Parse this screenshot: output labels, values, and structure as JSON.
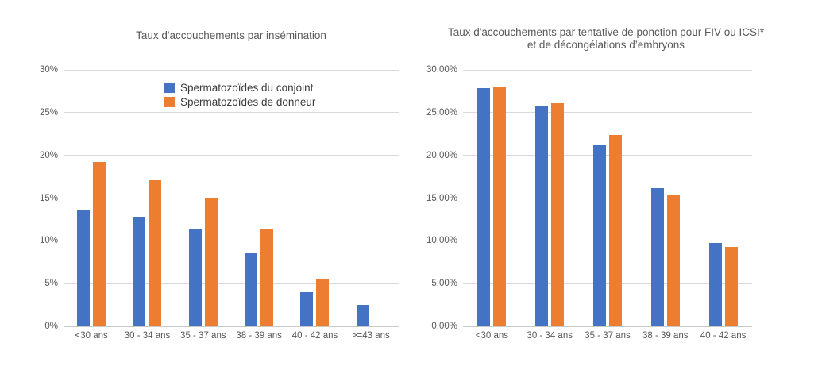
{
  "styles": {
    "background": "#ffffff",
    "bar_blue": "#4472C4",
    "bar_orange": "#ED7D31",
    "grid_color": "#d9d9d9",
    "axis_text_color": "#595959",
    "title_color": "#595959"
  },
  "chart_data": [
    {
      "type": "bar",
      "title": "Taux d'accouchements par insémination",
      "categories": [
        "<30 ans",
        "30 - 34 ans",
        "35 - 37 ans",
        "38 - 39 ans",
        "40 - 42 ans",
        ">=43 ans"
      ],
      "series": [
        {
          "name": "Spermatozoïdes du conjoint",
          "color": "#4472C4",
          "values": [
            13.6,
            12.8,
            11.4,
            8.5,
            4.0,
            2.5
          ]
        },
        {
          "name": "Spermatozoïdes de donneur",
          "color": "#ED7D31",
          "values": [
            19.2,
            17.1,
            15.0,
            11.3,
            5.6,
            null
          ]
        }
      ],
      "ylim": [
        0,
        30
      ],
      "ytick_step": 5,
      "ytick_labels_bottom_to_top": [
        "0%",
        "5%",
        "10%",
        "15%",
        "20%",
        "25%",
        "30%"
      ],
      "grid": true,
      "legend": {
        "visible": true,
        "position": "inside-top"
      }
    },
    {
      "type": "bar",
      "title": "Taux d'accouchements par tentative de ponction pour FIV ou ICSI*\net de décongélations d’embryons",
      "categories": [
        "<30 ans",
        "30 - 34 ans",
        "35 - 37 ans",
        "38 - 39 ans",
        "40 - 42 ans"
      ],
      "series": [
        {
          "color": "#4472C4",
          "values": [
            27.9,
            25.8,
            21.2,
            16.2,
            9.8
          ]
        },
        {
          "color": "#ED7D31",
          "values": [
            28.0,
            26.1,
            22.4,
            15.3,
            9.3
          ]
        }
      ],
      "ylim": [
        0,
        30
      ],
      "ytick_step": 5,
      "ytick_labels_bottom_to_top": [
        "0,00%",
        "5,00%",
        "10,00%",
        "15,00%",
        "20,00%",
        "25,00%",
        "30,00%"
      ],
      "grid": true,
      "legend": {
        "visible": false
      }
    }
  ]
}
